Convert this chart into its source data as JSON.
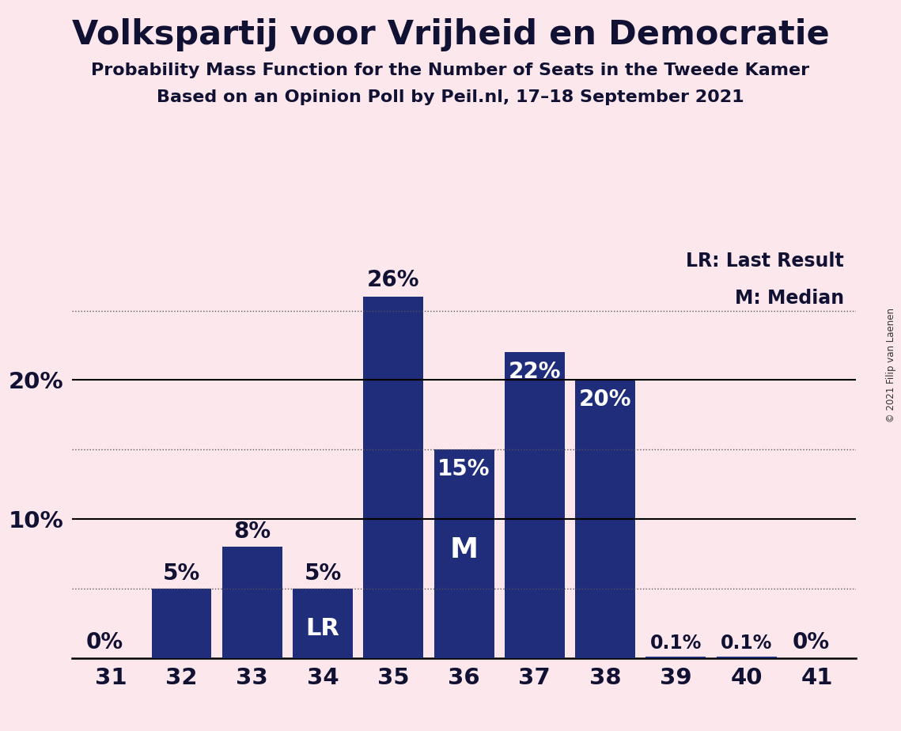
{
  "title": "Volkspartij voor Vrijheid en Democratie",
  "subtitle1": "Probability Mass Function for the Number of Seats in the Tweede Kamer",
  "subtitle2": "Based on an Opinion Poll by Peil.nl, 17–18 September 2021",
  "copyright": "© 2021 Filip van Laenen",
  "categories": [
    31,
    32,
    33,
    34,
    35,
    36,
    37,
    38,
    39,
    40,
    41
  ],
  "values": [
    0.0,
    5.0,
    8.0,
    5.0,
    26.0,
    15.0,
    22.0,
    20.0,
    0.1,
    0.1,
    0.0
  ],
  "bar_color": "#1f2d7b",
  "background_color": "#fce8ec",
  "label_color_inside": "#ffffff",
  "label_color_outside": "#111133",
  "yticks": [
    10,
    20
  ],
  "ylim": [
    0,
    30
  ],
  "dotted_yticks": [
    5,
    15,
    25
  ],
  "lr_seat": 34,
  "median_seat": 36,
  "annotations": {
    "31": "0%",
    "32": "5%",
    "33": "8%",
    "34": "5%",
    "35": "26%",
    "36": "15%",
    "37": "22%",
    "38": "20%",
    "39": "0.1%",
    "40": "0.1%",
    "41": "0%"
  },
  "legend_lr": "LR: Last Result",
  "legend_m": "M: Median"
}
